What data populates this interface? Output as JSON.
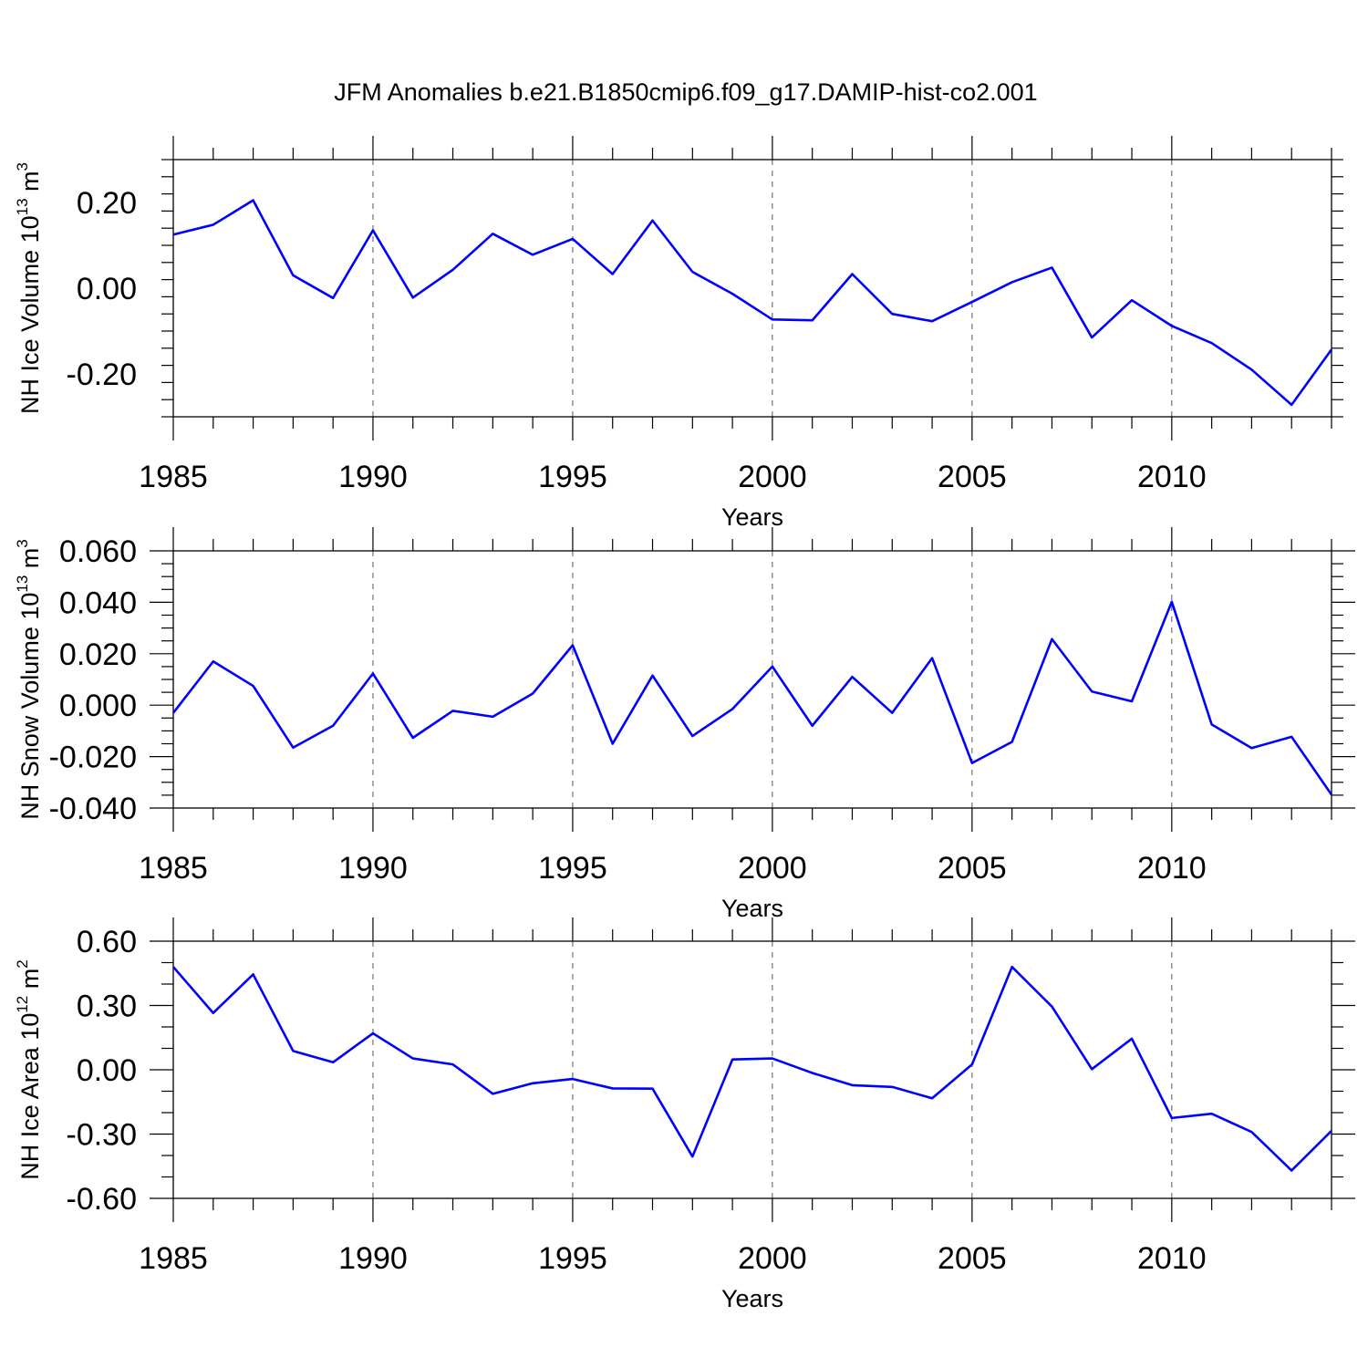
{
  "figure": {
    "title": "JFM Anomalies b.e21.B1850cmip6.f09_g17.DAMIP-hist-co2.001"
  },
  "colors": {
    "line": "#0000ff",
    "axis": "#000000",
    "grid": "#555555"
  },
  "chart_data": [
    {
      "type": "line",
      "title": "JFM Anomalies b.e21.B1850cmip6.f09_g17.DAMIP-hist-co2.001",
      "ylabel": "NH Ice Volume 10",
      "ylabel_exp": "13",
      "ylabel_unit": " m",
      "ylabel_unit_exp": "3",
      "xlabel": "Years",
      "xlim": [
        1985,
        2014
      ],
      "ylim": [
        -0.3,
        0.3
      ],
      "yticks": [
        -0.2,
        0.0,
        0.2
      ],
      "ytick_labels": [
        "-0.20",
        "0.00",
        "0.20"
      ],
      "yminor_step": 0.04,
      "xticks": [
        1985,
        1990,
        1995,
        2000,
        2005,
        2010
      ],
      "xtick_labels": [
        "1985",
        "1990",
        "1995",
        "2000",
        "2005",
        "2010"
      ],
      "x": [
        1985,
        1986,
        1987,
        1988,
        1989,
        1990,
        1991,
        1992,
        1993,
        1994,
        1995,
        1996,
        1997,
        1998,
        1999,
        2000,
        2001,
        2002,
        2003,
        2004,
        2005,
        2006,
        2007,
        2008,
        2009,
        2010,
        2011,
        2012,
        2013,
        2014
      ],
      "series": [
        {
          "name": "NH Ice Volume",
          "values": [
            0.125,
            0.148,
            0.205,
            0.03,
            -0.023,
            0.135,
            -0.022,
            0.043,
            0.127,
            0.078,
            0.115,
            0.033,
            0.158,
            0.038,
            -0.013,
            -0.073,
            -0.075,
            0.033,
            -0.06,
            -0.077,
            -0.032,
            0.014,
            0.048,
            -0.115,
            -0.028,
            -0.088,
            -0.128,
            -0.19,
            -0.272,
            -0.143
          ]
        }
      ]
    },
    {
      "type": "line",
      "ylabel": "NH Snow Volume 10",
      "ylabel_exp": "13",
      "ylabel_unit": " m",
      "ylabel_unit_exp": "3",
      "xlabel": "Years",
      "xlim": [
        1985,
        2014
      ],
      "ylim": [
        -0.04,
        0.06
      ],
      "yticks": [
        -0.04,
        -0.02,
        0.0,
        0.02,
        0.04,
        0.06
      ],
      "ytick_labels": [
        "-0.040",
        "-0.020",
        "0.000",
        "0.020",
        "0.040",
        "0.060"
      ],
      "yminor_step": 0.005,
      "xticks": [
        1985,
        1990,
        1995,
        2000,
        2005,
        2010
      ],
      "xtick_labels": [
        "1985",
        "1990",
        "1995",
        "2000",
        "2005",
        "2010"
      ],
      "x": [
        1985,
        1986,
        1987,
        1988,
        1989,
        1990,
        1991,
        1992,
        1993,
        1994,
        1995,
        1996,
        1997,
        1998,
        1999,
        2000,
        2001,
        2002,
        2003,
        2004,
        2005,
        2006,
        2007,
        2008,
        2009,
        2010,
        2011,
        2012,
        2013,
        2014
      ],
      "series": [
        {
          "name": "NH Snow Volume",
          "values": [
            -0.003,
            0.017,
            0.0075,
            -0.0165,
            -0.008,
            0.0123,
            -0.0127,
            -0.0022,
            -0.0045,
            0.0045,
            0.0233,
            -0.015,
            0.0115,
            -0.012,
            -0.0015,
            0.015,
            -0.008,
            0.011,
            -0.003,
            0.0183,
            -0.0225,
            -0.0143,
            0.0257,
            0.0053,
            0.0015,
            0.0402,
            -0.0075,
            -0.0167,
            -0.0123,
            -0.0348
          ]
        }
      ]
    },
    {
      "type": "line",
      "ylabel": "NH Ice Area 10",
      "ylabel_exp": "12",
      "ylabel_unit": " m",
      "ylabel_unit_exp": "2",
      "xlabel": "Years",
      "xlim": [
        1985,
        2014
      ],
      "ylim": [
        -0.6,
        0.6
      ],
      "yticks": [
        -0.6,
        -0.3,
        0.0,
        0.3,
        0.6
      ],
      "ytick_labels": [
        "-0.60",
        "-0.30",
        "0.00",
        "0.30",
        "0.60"
      ],
      "yminor_step": 0.1,
      "xticks": [
        1985,
        1990,
        1995,
        2000,
        2005,
        2010
      ],
      "xtick_labels": [
        "1985",
        "1990",
        "1995",
        "2000",
        "2005",
        "2010"
      ],
      "x": [
        1985,
        1986,
        1987,
        1988,
        1989,
        1990,
        1991,
        1992,
        1993,
        1994,
        1995,
        1996,
        1997,
        1998,
        1999,
        2000,
        2001,
        2002,
        2003,
        2004,
        2005,
        2006,
        2007,
        2008,
        2009,
        2010,
        2011,
        2012,
        2013,
        2014
      ],
      "series": [
        {
          "name": "NH Ice Area",
          "values": [
            0.48,
            0.265,
            0.445,
            0.088,
            0.035,
            0.17,
            0.053,
            0.025,
            -0.112,
            -0.063,
            -0.043,
            -0.087,
            -0.088,
            -0.405,
            0.048,
            0.053,
            -0.015,
            -0.072,
            -0.08,
            -0.133,
            0.025,
            0.48,
            0.295,
            0.003,
            0.145,
            -0.225,
            -0.205,
            -0.29,
            -0.47,
            -0.285
          ]
        }
      ]
    }
  ]
}
